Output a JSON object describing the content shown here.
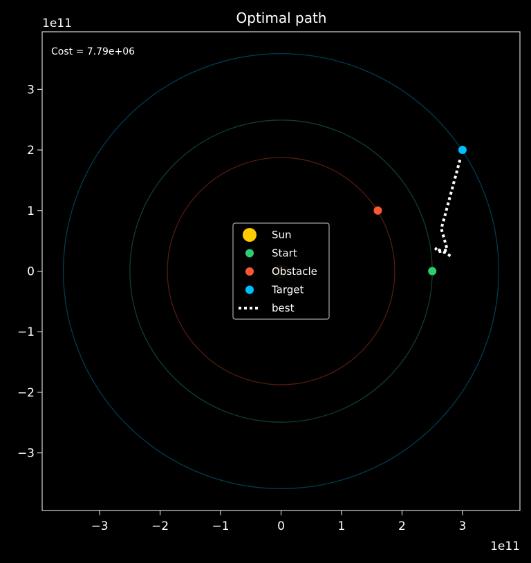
{
  "chart_data": {
    "type": "scatter",
    "title": "Optimal path",
    "xlabel": "",
    "ylabel": "",
    "x_scale_label": "1e11",
    "y_scale_label": "1e11",
    "xlim": [
      -3.95,
      3.95
    ],
    "ylim": [
      -3.95,
      3.95
    ],
    "x_ticks": [
      -3,
      -2,
      -1,
      0,
      1,
      2,
      3
    ],
    "y_ticks": [
      -3,
      -2,
      -1,
      0,
      1,
      2,
      3
    ],
    "x_tick_labels": [
      "−3",
      "−2",
      "−1",
      "0",
      "1",
      "2",
      "3"
    ],
    "y_tick_labels": [
      "−3",
      "−2",
      "−1",
      "0",
      "1",
      "2",
      "3"
    ],
    "annotation": "Cost = 7.79e+06",
    "grid": false,
    "legend_position": "center",
    "orbits": [
      {
        "radius": 1.88,
        "color": "#ff5733"
      },
      {
        "radius": 2.5,
        "color": "#2ecc71"
      },
      {
        "radius": 3.6,
        "color": "#00bfff"
      }
    ],
    "series": [
      {
        "name": "Sun",
        "kind": "point",
        "color": "#ffcc00",
        "points": [
          [
            0,
            0
          ]
        ]
      },
      {
        "name": "Start",
        "kind": "point",
        "color": "#2ecc71",
        "points": [
          [
            2.5,
            0
          ]
        ]
      },
      {
        "name": "Obstacle",
        "kind": "point",
        "color": "#ff5733",
        "points": [
          [
            1.6,
            1.0
          ]
        ]
      },
      {
        "name": "Target",
        "kind": "point",
        "color": "#00bfff",
        "points": [
          [
            3.0,
            2.0
          ]
        ]
      },
      {
        "name": "best",
        "kind": "line",
        "color": "#ffffff",
        "points": [
          [
            2.8,
            0.25
          ],
          [
            2.72,
            0.3
          ],
          [
            2.55,
            0.38
          ],
          [
            2.6,
            0.32
          ],
          [
            2.75,
            0.35
          ],
          [
            2.65,
            0.7
          ],
          [
            2.97,
            1.88
          ]
        ]
      }
    ]
  }
}
